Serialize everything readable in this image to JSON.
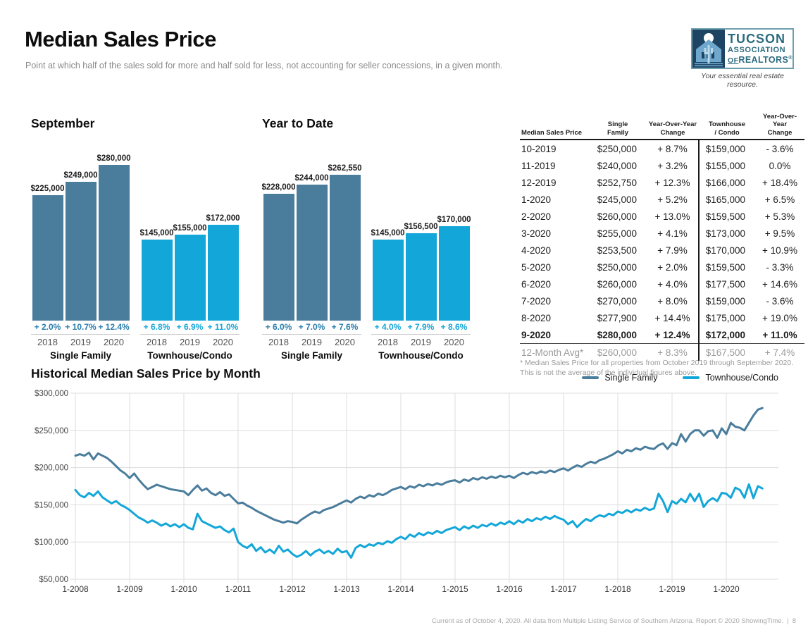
{
  "header": {
    "title": "Median Sales Price",
    "subtitle": "Point at which half of the sales sold for more and half sold for less, not accounting for seller concessions, in a given month.",
    "logo": {
      "line1": "TUCSON",
      "line2": "ASSOCIATION",
      "line3_of": "OF",
      "line3_realtors": "REALTORS",
      "reg": "®",
      "tagline": "Your essential real estate resource."
    }
  },
  "colors": {
    "single_family": "#4a7d9c",
    "townhouse_condo": "#12a7d8",
    "sf_pct": "#2b7fad",
    "tc_pct": "#16a7d8",
    "grid": "#dddddd",
    "axis_text": "#444444"
  },
  "chart_data": [
    {
      "type": "bar",
      "title": "September",
      "unit": "USD",
      "groups": [
        {
          "label": "Single Family",
          "color_key": "single_family",
          "pct_color_key": "sf_pct",
          "bars": [
            {
              "year": "2018",
              "value": 225000,
              "label": "$225,000",
              "change": "+ 2.0%"
            },
            {
              "year": "2019",
              "value": 249000,
              "label": "$249,000",
              "change": "+ 10.7%"
            },
            {
              "year": "2020",
              "value": 280000,
              "label": "$280,000",
              "change": "+ 12.4%"
            }
          ]
        },
        {
          "label": "Townhouse/Condo",
          "color_key": "townhouse_condo",
          "pct_color_key": "tc_pct",
          "bars": [
            {
              "year": "2018",
              "value": 145000,
              "label": "$145,000",
              "change": "+ 6.8%"
            },
            {
              "year": "2019",
              "value": 155000,
              "label": "$155,000",
              "change": "+ 6.9%"
            },
            {
              "year": "2020",
              "value": 172000,
              "label": "$172,000",
              "change": "+ 11.0%"
            }
          ]
        }
      ]
    },
    {
      "type": "bar",
      "title": "Year to Date",
      "unit": "USD",
      "groups": [
        {
          "label": "Single Family",
          "color_key": "single_family",
          "pct_color_key": "sf_pct",
          "bars": [
            {
              "year": "2018",
              "value": 228000,
              "label": "$228,000",
              "change": "+ 6.0%"
            },
            {
              "year": "2019",
              "value": 244000,
              "label": "$244,000",
              "change": "+ 7.0%"
            },
            {
              "year": "2020",
              "value": 262550,
              "label": "$262,550",
              "change": "+ 7.6%"
            }
          ]
        },
        {
          "label": "Townhouse/Condo",
          "color_key": "townhouse_condo",
          "pct_color_key": "tc_pct",
          "bars": [
            {
              "year": "2018",
              "value": 145000,
              "label": "$145,000",
              "change": "+ 4.0%"
            },
            {
              "year": "2019",
              "value": 156500,
              "label": "$156,500",
              "change": "+ 7.9%"
            },
            {
              "year": "2020",
              "value": 170000,
              "label": "$170,000",
              "change": "+ 8.6%"
            }
          ]
        }
      ]
    },
    {
      "type": "line",
      "title": "Historical Median Sales Price by Month",
      "unit": "USD thousands",
      "ylim": [
        50000,
        300000
      ],
      "y_ticks_thousands": [
        300,
        250,
        200,
        150,
        100,
        50
      ],
      "y_tick_labels": [
        "$300,000",
        "$250,000",
        "$200,000",
        "$150,000",
        "$100,000",
        "$50,000"
      ],
      "x_tick_labels": [
        "1-2008",
        "1-2009",
        "1-2010",
        "1-2011",
        "1-2012",
        "1-2013",
        "1-2014",
        "1-2015",
        "1-2016",
        "1-2017",
        "1-2018",
        "1-2019",
        "1-2020"
      ],
      "x_months_per_tick": 12,
      "grid": true,
      "legend_position": "top-right",
      "series": [
        {
          "name": "Single Family",
          "color_key": "single_family",
          "values_thousands": [
            216,
            218,
            216,
            220,
            211,
            219,
            216,
            213,
            208,
            202,
            196,
            192,
            186,
            192,
            184,
            177,
            171,
            174,
            177,
            175,
            173,
            171,
            170,
            169,
            168,
            163,
            170,
            176,
            169,
            172,
            166,
            163,
            167,
            162,
            164,
            158,
            152,
            153,
            149,
            146,
            142,
            139,
            136,
            133,
            130,
            128,
            126,
            128,
            127,
            125,
            130,
            134,
            138,
            141,
            139,
            143,
            145,
            147,
            150,
            153,
            156,
            153,
            158,
            161,
            159,
            163,
            161,
            165,
            163,
            166,
            170,
            172,
            174,
            171,
            175,
            173,
            177,
            175,
            178,
            176,
            179,
            177,
            180,
            182,
            183,
            180,
            184,
            182,
            186,
            184,
            187,
            185,
            188,
            186,
            189,
            187,
            189,
            186,
            190,
            193,
            191,
            194,
            192,
            195,
            193,
            196,
            194,
            197,
            199,
            196,
            200,
            203,
            201,
            205,
            208,
            206,
            210,
            212,
            215,
            218,
            222,
            219,
            224,
            222,
            226,
            224,
            228,
            226,
            225,
            230,
            232.6,
            225.1,
            232.9,
            230.1,
            245,
            235,
            245.1,
            250,
            250,
            242.9,
            249,
            250,
            240,
            252.75,
            245,
            260,
            255,
            253.5,
            250,
            260,
            270,
            277.9,
            280
          ]
        },
        {
          "name": "Townhouse/Condo",
          "color_key": "townhouse_condo",
          "values_thousands": [
            170,
            163,
            160,
            166,
            162,
            168,
            160,
            156,
            152,
            155,
            150,
            147,
            143,
            138,
            133,
            130,
            126,
            129,
            126,
            122,
            125,
            121,
            124,
            120,
            124,
            119,
            117,
            138,
            128,
            125,
            122,
            119,
            121,
            116,
            113,
            118,
            100,
            95,
            92,
            97,
            88,
            93,
            86,
            90,
            85,
            95,
            87,
            90,
            84,
            80,
            83,
            88,
            82,
            87,
            90,
            85,
            88,
            84,
            91,
            86,
            88,
            79,
            92,
            96,
            93,
            97,
            95,
            99,
            97,
            101,
            99,
            104,
            107,
            104,
            110,
            107,
            112,
            109,
            113,
            111,
            115,
            112,
            116,
            118,
            120,
            116,
            121,
            118,
            122,
            119,
            123,
            121,
            125,
            122,
            126,
            124,
            128,
            124,
            129,
            126,
            131,
            128,
            132,
            130,
            134,
            131,
            135,
            132,
            130,
            124,
            128,
            120,
            126,
            131,
            128,
            133,
            136,
            134,
            138,
            136,
            141,
            139,
            143,
            140,
            144,
            142,
            146,
            143,
            145,
            164.9,
            155,
            140.2,
            154.9,
            151.5,
            158,
            153.3,
            164.9,
            154.9,
            164.9,
            147.1,
            155,
            159,
            155,
            166,
            165,
            159.5,
            173,
            170,
            159.5,
            177.5,
            159,
            175,
            172
          ]
        }
      ]
    }
  ],
  "table": {
    "headers": [
      "Median Sales Price",
      "Single\nFamily",
      "Year-Over-Year\nChange",
      "Townhouse\n/ Condo",
      "Year-Over-Year\nChange"
    ],
    "rows": [
      {
        "period": "10-2019",
        "sf": "$250,000",
        "sf_change": "+ 8.7%",
        "tc": "$159,000",
        "tc_change": "- 3.6%",
        "emphasis": "normal"
      },
      {
        "period": "11-2019",
        "sf": "$240,000",
        "sf_change": "+ 3.2%",
        "tc": "$155,000",
        "tc_change": "0.0%",
        "emphasis": "normal"
      },
      {
        "period": "12-2019",
        "sf": "$252,750",
        "sf_change": "+ 12.3%",
        "tc": "$166,000",
        "tc_change": "+ 18.4%",
        "emphasis": "normal"
      },
      {
        "period": "1-2020",
        "sf": "$245,000",
        "sf_change": "+ 5.2%",
        "tc": "$165,000",
        "tc_change": "+ 6.5%",
        "emphasis": "normal"
      },
      {
        "period": "2-2020",
        "sf": "$260,000",
        "sf_change": "+ 13.0%",
        "tc": "$159,500",
        "tc_change": "+ 5.3%",
        "emphasis": "normal"
      },
      {
        "period": "3-2020",
        "sf": "$255,000",
        "sf_change": "+ 4.1%",
        "tc": "$173,000",
        "tc_change": "+ 9.5%",
        "emphasis": "normal"
      },
      {
        "period": "4-2020",
        "sf": "$253,500",
        "sf_change": "+ 7.9%",
        "tc": "$170,000",
        "tc_change": "+ 10.9%",
        "emphasis": "normal"
      },
      {
        "period": "5-2020",
        "sf": "$250,000",
        "sf_change": "+ 2.0%",
        "tc": "$159,500",
        "tc_change": "- 3.3%",
        "emphasis": "normal"
      },
      {
        "period": "6-2020",
        "sf": "$260,000",
        "sf_change": "+ 4.0%",
        "tc": "$177,500",
        "tc_change": "+ 14.6%",
        "emphasis": "normal"
      },
      {
        "period": "7-2020",
        "sf": "$270,000",
        "sf_change": "+ 8.0%",
        "tc": "$159,000",
        "tc_change": "- 3.6%",
        "emphasis": "normal"
      },
      {
        "period": "8-2020",
        "sf": "$277,900",
        "sf_change": "+ 14.4%",
        "tc": "$175,000",
        "tc_change": "+ 19.0%",
        "emphasis": "normal"
      },
      {
        "period": "9-2020",
        "sf": "$280,000",
        "sf_change": "+ 12.4%",
        "tc": "$172,000",
        "tc_change": "+ 11.0%",
        "emphasis": "bold"
      },
      {
        "period": "12-Month Avg*",
        "sf": "$260,000",
        "sf_change": "+ 8.3%",
        "tc": "$167,500",
        "tc_change": "+ 7.4%",
        "emphasis": "avg"
      }
    ],
    "footnote": "* Median Sales Price for all properties from October 2019 through September 2020. This is not the average of the individual figures above."
  },
  "footer": {
    "text": "Current as of October 4, 2020. All data from Multiple Listing Service of Southern Arizona. Report © 2020 ShowingTime.",
    "separator": "|",
    "page": "8"
  }
}
